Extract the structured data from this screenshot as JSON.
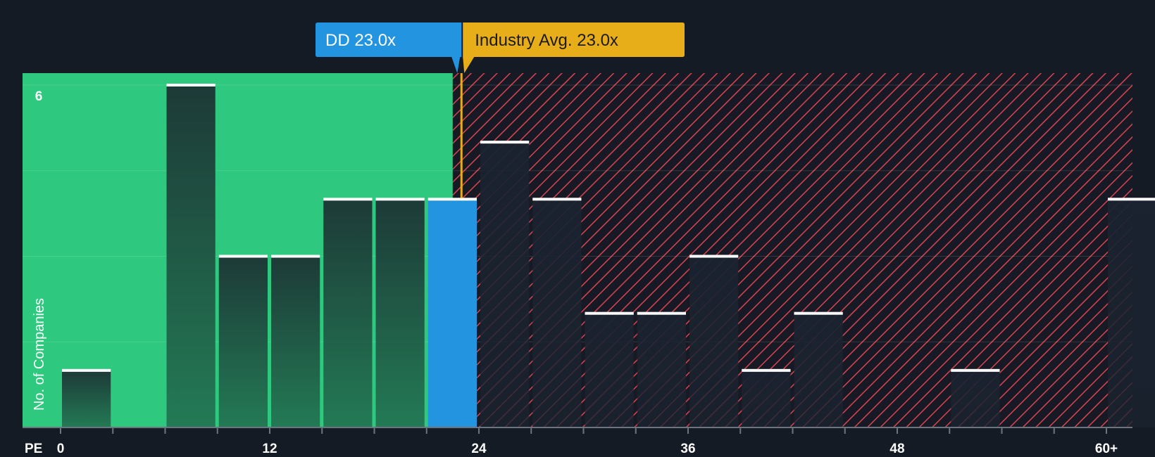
{
  "chart_data": {
    "type": "bar",
    "xlabel": "PE",
    "ylabel": "No. of Companies",
    "xlim": [
      0,
      61
    ],
    "ylim": [
      0,
      6.2
    ],
    "x_ticks": [
      {
        "value": 0,
        "label": "0"
      },
      {
        "value": 12,
        "label": "12"
      },
      {
        "value": 24,
        "label": "24"
      },
      {
        "value": 36,
        "label": "36"
      },
      {
        "value": 48,
        "label": "48"
      },
      {
        "value": 60,
        "label": "60+"
      }
    ],
    "y_ticks": [
      {
        "value": 6,
        "label": "6"
      }
    ],
    "bin_width": 3,
    "bins": [
      {
        "start": 0,
        "count": 1
      },
      {
        "start": 6,
        "count": 6
      },
      {
        "start": 9,
        "count": 3
      },
      {
        "start": 12,
        "count": 3
      },
      {
        "start": 15,
        "count": 4
      },
      {
        "start": 18,
        "count": 4
      },
      {
        "start": 21,
        "count": 4,
        "highlight": true
      },
      {
        "start": 24,
        "count": 5
      },
      {
        "start": 27,
        "count": 4
      },
      {
        "start": 30,
        "count": 2
      },
      {
        "start": 33,
        "count": 2
      },
      {
        "start": 36,
        "count": 3
      },
      {
        "start": 39,
        "count": 1
      },
      {
        "start": 42,
        "count": 2
      },
      {
        "start": 51,
        "count": 1
      },
      {
        "start": 60,
        "count": 4
      }
    ],
    "company_pe": 23.0,
    "industry_avg_pe": 23.0,
    "fair_region_end": 22.5,
    "company_callout": "DD 23.0x",
    "industry_callout": "Industry Avg. 23.0x"
  },
  "colors": {
    "background": "#151b24",
    "fair_zone": "#2ec97e",
    "overvalued_hatch": "#d64550",
    "bar_dark": "#1e3a38",
    "bar_highlight": "#2394df",
    "company_callout_bg": "#2394df",
    "industry_callout_bg": "#e8ae1a",
    "industry_text": "#1b1b1b",
    "bar_cap": "#ffffff"
  }
}
